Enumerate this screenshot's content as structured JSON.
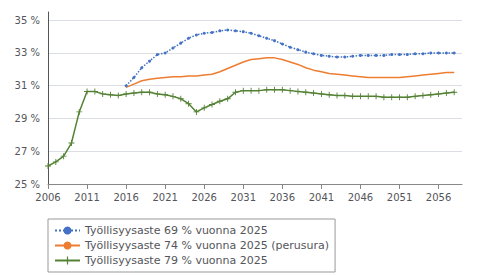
{
  "chart_data": {
    "type": "line",
    "xlim": [
      2006,
      2059
    ],
    "ylim": [
      25,
      35.5
    ],
    "xticks": [
      2006,
      2011,
      2016,
      2021,
      2026,
      2031,
      2036,
      2041,
      2046,
      2051,
      2056
    ],
    "yticks": [
      {
        "value": 25,
        "label": "25 %"
      },
      {
        "value": 27,
        "label": "27 %"
      },
      {
        "value": 29,
        "label": "29 %"
      },
      {
        "value": 31,
        "label": "31 %"
      },
      {
        "value": 33,
        "label": "33 %"
      },
      {
        "value": 35,
        "label": "35 %"
      }
    ],
    "grid": true,
    "legend": "bottom",
    "series": [
      {
        "name": "Työllisyysaste 69 % vuonna 2025",
        "color": "#4472c4",
        "marker": "dot",
        "line_style": "dotted",
        "x": [
          2016,
          2017,
          2018,
          2019,
          2020,
          2021,
          2022,
          2023,
          2024,
          2025,
          2026,
          2027,
          2028,
          2029,
          2030,
          2031,
          2032,
          2033,
          2034,
          2035,
          2036,
          2037,
          2038,
          2039,
          2040,
          2041,
          2042,
          2043,
          2044,
          2045,
          2046,
          2047,
          2048,
          2049,
          2050,
          2051,
          2052,
          2053,
          2054,
          2055,
          2056,
          2057,
          2058
        ],
        "values": [
          31.0,
          31.5,
          32.1,
          32.5,
          32.9,
          33.0,
          33.3,
          33.6,
          33.9,
          34.1,
          34.2,
          34.25,
          34.35,
          34.4,
          34.35,
          34.3,
          34.2,
          34.05,
          33.9,
          33.75,
          33.55,
          33.35,
          33.2,
          33.05,
          32.95,
          32.85,
          32.8,
          32.75,
          32.75,
          32.8,
          32.85,
          32.85,
          32.85,
          32.85,
          32.9,
          32.9,
          32.9,
          32.95,
          32.95,
          33.0,
          33.0,
          33.0,
          33.0
        ]
      },
      {
        "name": "Työllisyysaste 74 % vuonna 2025 (perusura)",
        "color": "#ed7d31",
        "marker": "none",
        "line_style": "solid",
        "x": [
          2016,
          2017,
          2018,
          2019,
          2020,
          2021,
          2022,
          2023,
          2024,
          2025,
          2026,
          2027,
          2028,
          2029,
          2030,
          2031,
          2032,
          2033,
          2034,
          2035,
          2036,
          2037,
          2038,
          2039,
          2040,
          2041,
          2042,
          2043,
          2044,
          2045,
          2046,
          2047,
          2048,
          2049,
          2050,
          2051,
          2052,
          2053,
          2054,
          2055,
          2056,
          2057,
          2058
        ],
        "values": [
          30.9,
          31.1,
          31.3,
          31.4,
          31.45,
          31.5,
          31.55,
          31.55,
          31.6,
          31.6,
          31.65,
          31.7,
          31.85,
          32.05,
          32.25,
          32.45,
          32.6,
          32.65,
          32.7,
          32.7,
          32.6,
          32.45,
          32.3,
          32.1,
          31.95,
          31.85,
          31.75,
          31.7,
          31.65,
          31.6,
          31.55,
          31.5,
          31.5,
          31.5,
          31.5,
          31.5,
          31.55,
          31.6,
          31.65,
          31.7,
          31.75,
          31.8,
          31.8
        ]
      },
      {
        "name": "Työllisyysaste 79 % vuonna 2025",
        "color": "#548235",
        "marker": "plus",
        "line_style": "solid",
        "x": [
          2006,
          2007,
          2008,
          2009,
          2010,
          2011,
          2012,
          2013,
          2014,
          2015,
          2016,
          2017,
          2018,
          2019,
          2020,
          2021,
          2022,
          2023,
          2024,
          2025,
          2026,
          2027,
          2028,
          2029,
          2030,
          2031,
          2032,
          2033,
          2034,
          2035,
          2036,
          2037,
          2038,
          2039,
          2040,
          2041,
          2042,
          2043,
          2044,
          2045,
          2046,
          2047,
          2048,
          2049,
          2050,
          2051,
          2052,
          2053,
          2054,
          2055,
          2056,
          2057,
          2058
        ],
        "values": [
          26.1,
          26.35,
          26.7,
          27.5,
          29.4,
          30.65,
          30.65,
          30.5,
          30.45,
          30.4,
          30.5,
          30.55,
          30.6,
          30.6,
          30.5,
          30.45,
          30.35,
          30.2,
          29.9,
          29.4,
          29.65,
          29.85,
          30.05,
          30.2,
          30.6,
          30.7,
          30.7,
          30.7,
          30.75,
          30.75,
          30.75,
          30.7,
          30.65,
          30.6,
          30.55,
          30.5,
          30.45,
          30.4,
          30.4,
          30.35,
          30.35,
          30.35,
          30.35,
          30.3,
          30.3,
          30.3,
          30.3,
          30.35,
          30.4,
          30.45,
          30.5,
          30.55,
          30.6
        ]
      }
    ]
  }
}
